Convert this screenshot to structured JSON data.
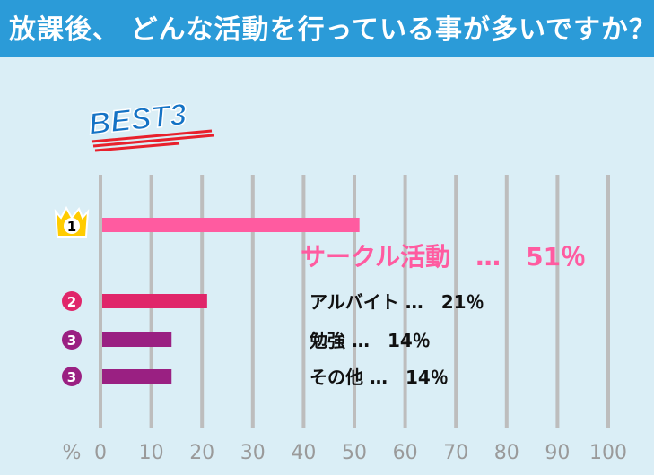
{
  "header": {
    "title": "放課後、 どんな活動を行っている事が多いですか？"
  },
  "badge": {
    "text": "BEST3"
  },
  "colors": {
    "header_bg": "#2b9bd8",
    "page_bg": "#daeef6",
    "rank1": "#ff5ba0",
    "rank2": "#e0266a",
    "rank3": "#9a2082",
    "crown": "#ffcc00",
    "badge_text": "#1573c5",
    "badge_underline": "#e8202c",
    "grid": "#bdbdbd"
  },
  "chart_data": {
    "type": "bar",
    "orientation": "horizontal",
    "unit_label": "%",
    "xlim": [
      0,
      100
    ],
    "ticks": [
      0,
      10,
      20,
      30,
      40,
      50,
      60,
      70,
      80,
      90,
      100
    ],
    "grid": true,
    "bars": [
      {
        "rank": "1",
        "category": "サークル活動",
        "value": 51,
        "label": "サークル活動　…　51％",
        "color": "#ff5ba0",
        "rank_icon": "crown-icon"
      },
      {
        "rank": "2",
        "category": "アルバイト",
        "value": 21,
        "label": "アルバイト …　21％",
        "color": "#e0266a",
        "rank_icon": "rank-circle-icon"
      },
      {
        "rank": "3",
        "category": "勉強",
        "value": 14,
        "label": "勉強 …　14％",
        "color": "#9a2082",
        "rank_icon": "rank-circle-icon"
      },
      {
        "rank": "3",
        "category": "その他",
        "value": 14,
        "label": "その他 …　14％",
        "color": "#9a2082",
        "rank_icon": "rank-circle-icon"
      }
    ]
  }
}
